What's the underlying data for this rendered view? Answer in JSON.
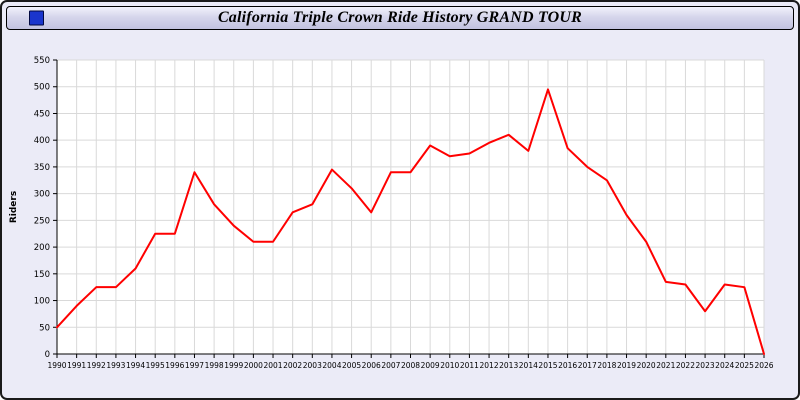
{
  "window": {
    "title": "California Triple Crown Ride History GRAND TOUR",
    "icon": "blue-square-icon"
  },
  "colors": {
    "page_background": "#ebebf7",
    "plot_background": "#ffffff",
    "gridline": "#d9d9d9",
    "axis": "#000000",
    "series_line": "#ff0000"
  },
  "chart_data": {
    "type": "line",
    "title": "California Triple Crown Ride History GRAND TOUR",
    "xlabel": "",
    "ylabel": "Riders",
    "ylim": [
      0,
      550
    ],
    "ytick_step": 50,
    "grid": true,
    "legend": "none",
    "line_color": "#ff0000",
    "categories": [
      1990,
      1991,
      1992,
      1993,
      1994,
      1995,
      1996,
      1997,
      1998,
      1999,
      2000,
      2001,
      2002,
      2003,
      2004,
      2005,
      2006,
      2007,
      2008,
      2009,
      2010,
      2011,
      2012,
      2013,
      2014,
      2015,
      2016,
      2017,
      2018,
      2019,
      2020,
      2021,
      2022,
      2023,
      2024,
      2025,
      2026
    ],
    "values": [
      50,
      90,
      125,
      125,
      160,
      225,
      225,
      340,
      280,
      240,
      210,
      210,
      265,
      280,
      345,
      310,
      265,
      340,
      340,
      390,
      370,
      375,
      395,
      410,
      380,
      495,
      385,
      350,
      325,
      260,
      210,
      135,
      130,
      80,
      130,
      125,
      0
    ]
  }
}
